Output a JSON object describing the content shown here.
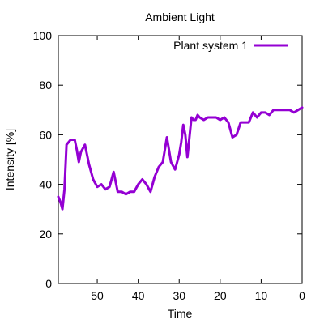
{
  "chart_data": {
    "type": "line",
    "title": "Ambient Light",
    "xlabel": "Time",
    "ylabel": "Intensity [%]",
    "xlim": [
      59.5,
      0
    ],
    "ylim": [
      0,
      100
    ],
    "x_ticks": [
      50,
      40,
      30,
      20,
      10,
      0
    ],
    "x_tick_labels": [
      "50",
      "40",
      "30",
      "20",
      "10",
      "0"
    ],
    "y_ticks": [
      0,
      20,
      40,
      60,
      80,
      100
    ],
    "y_tick_labels": [
      "0",
      "20",
      "40",
      "60",
      "80",
      "100"
    ],
    "grid": false,
    "legend_position": "top-right",
    "series": [
      {
        "name": "Plant system 1",
        "color": "#9400d3",
        "x": [
          59.5,
          59,
          58.5,
          58,
          57.5,
          57,
          56.5,
          56,
          55.5,
          55,
          54.5,
          54,
          53,
          52,
          51,
          50,
          49,
          48,
          47,
          46,
          45,
          44,
          43,
          42,
          41,
          40,
          39,
          38,
          37,
          36,
          35,
          34,
          33,
          32,
          31,
          30,
          29.5,
          29,
          28.5,
          28,
          27,
          26.5,
          26,
          25.5,
          25,
          24,
          23,
          22,
          21,
          20,
          19,
          18.5,
          18,
          17,
          16,
          15,
          14,
          13,
          12,
          11,
          10,
          9,
          8,
          7,
          6,
          5,
          4,
          3,
          2,
          1,
          0
        ],
        "y": [
          35,
          33,
          30,
          38,
          56,
          57,
          58,
          58,
          58,
          54,
          49,
          53,
          56,
          48,
          42,
          39,
          40,
          38,
          39,
          45,
          37,
          37,
          36,
          37,
          37,
          40,
          42,
          40,
          37,
          43,
          47,
          49,
          59,
          49,
          46,
          52,
          57,
          64,
          60,
          51,
          67,
          66,
          66,
          68,
          67,
          66,
          67,
          67,
          67,
          66,
          67,
          66,
          65,
          59,
          60,
          65,
          65,
          65,
          69,
          67,
          69,
          69,
          68,
          70,
          70,
          70,
          70,
          70,
          69,
          70,
          71
        ]
      }
    ]
  }
}
